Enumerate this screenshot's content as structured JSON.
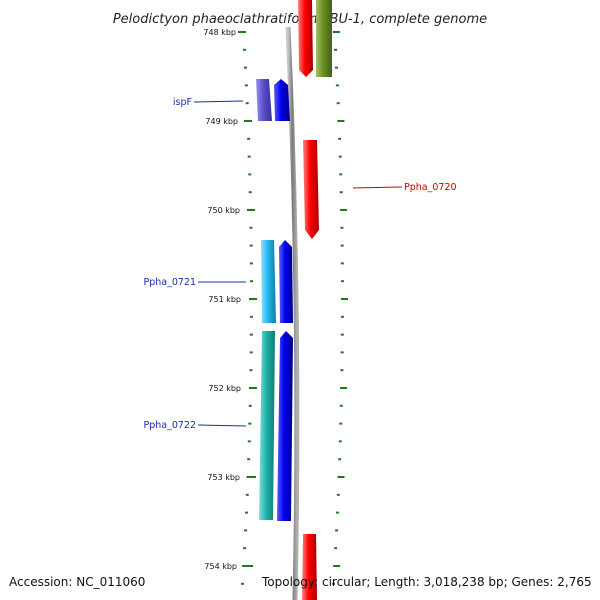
{
  "title": "Pelodictyon phaeoclathratiforme BU-1, complete genome",
  "ticks": [
    "748 kbp",
    "749 kbp",
    "750 kbp",
    "751 kbp",
    "752 kbp",
    "753 kbp",
    "754 kbp"
  ],
  "gene_labels": [
    "ispF",
    "Ppha_0720",
    "Ppha_0721",
    "Ppha_0722"
  ],
  "footer": {
    "accession": "Accession: NC_011060",
    "topology": "Topology: circular; Length: 3,018,238 bp; Genes: 2,765"
  },
  "colors": {
    "backbone": "#8a8a8a",
    "tick_green": "#1f7a1f",
    "forward_red": "#ee0000",
    "olive": "#6b8e23",
    "cds_blue": "#0000ee",
    "rna_purple": "#5a4fcf",
    "rna_lightblue": "#22b8f0",
    "rna_teal": "#20b2aa",
    "label_blue": "#1a2cb0",
    "label_red": "#cc0000"
  }
}
